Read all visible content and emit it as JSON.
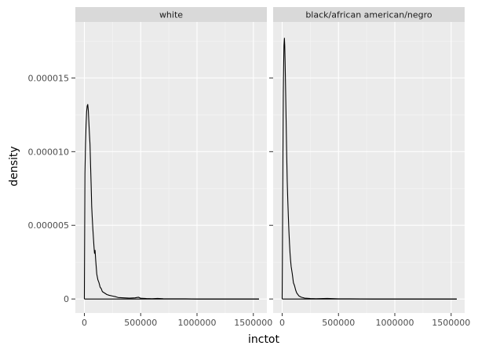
{
  "chart_data": {
    "type": "line",
    "xlabel": "inctot",
    "ylabel": "density",
    "x_ticks": [
      0,
      500000,
      1000000,
      1500000
    ],
    "x_tick_labels": [
      "0",
      "500000",
      "1000000",
      "1500000"
    ],
    "y_ticks": [
      0,
      5e-06,
      1e-05,
      1.5e-05
    ],
    "y_tick_labels": [
      "0",
      "0.000005",
      "0.000010",
      "0.000015"
    ],
    "xlim": [
      -80000,
      1620000
    ],
    "ylim": [
      -9.5e-07,
      1.88e-05
    ],
    "grid": true,
    "facets": [
      {
        "label": "white",
        "x": [
          0,
          2000,
          5000,
          10000,
          15000,
          20000,
          25000,
          30000,
          35000,
          40000,
          45000,
          50000,
          55000,
          60000,
          65000,
          70000,
          75000,
          80000,
          85000,
          90000,
          95000,
          100000,
          110000,
          120000,
          130000,
          140000,
          150000,
          160000,
          180000,
          200000,
          220000,
          250000,
          280000,
          300000,
          350000,
          400000,
          450000,
          480000,
          500000,
          550000,
          600000,
          650000,
          700000,
          800000,
          900000,
          1000000,
          1100000,
          1200000,
          1300000,
          1400000,
          1500000,
          1550000
        ],
        "y": [
          0,
          3.5e-06,
          8.5e-06,
          1.05e-05,
          1.18e-05,
          1.27e-05,
          1.31e-05,
          1.32e-05,
          1.28e-05,
          1.2e-05,
          1.12e-05,
          1.05e-05,
          9.1e-06,
          7.8e-06,
          6.3e-06,
          5.5e-06,
          4.8e-06,
          4.2e-06,
          3.6e-06,
          3.1e-06,
          3.3e-06,
          2.7e-06,
          1.7e-06,
          1.3e-06,
          1.1e-06,
          8e-07,
          7e-07,
          5e-07,
          4e-07,
          3e-07,
          2.5e-07,
          2e-07,
          1.5e-07,
          1e-07,
          8e-08,
          6e-08,
          8e-08,
          1.2e-07,
          5e-08,
          3e-08,
          2e-08,
          4e-08,
          2e-08,
          1e-08,
          1e-08,
          0,
          0,
          0,
          0,
          0,
          0,
          0
        ]
      },
      {
        "label": "black/african american/negro",
        "x": [
          0,
          2000,
          5000,
          8000,
          10000,
          13000,
          16000,
          20000,
          23000,
          26000,
          30000,
          35000,
          40000,
          45000,
          50000,
          55000,
          60000,
          65000,
          70000,
          75000,
          80000,
          90000,
          100000,
          110000,
          120000,
          130000,
          150000,
          170000,
          200000,
          250000,
          300000,
          400000,
          500000,
          600000,
          800000,
          1000000,
          1200000,
          1400000,
          1550000
        ],
        "y": [
          0,
          2.5e-06,
          7e-06,
          1.15e-05,
          1.4e-05,
          1.58e-05,
          1.72e-05,
          1.77e-05,
          1.72e-05,
          1.62e-05,
          1.45e-05,
          1.22e-05,
          9.9e-06,
          8e-06,
          6.7e-06,
          5.6e-06,
          4.6e-06,
          3.8e-06,
          3.1e-06,
          2.6e-06,
          2.2e-06,
          1.7e-06,
          1.1e-06,
          9e-07,
          6e-07,
          4e-07,
          2e-07,
          1.2e-07,
          6e-08,
          3e-08,
          2e-08,
          4e-08,
          1e-08,
          1e-08,
          0,
          0,
          0,
          0,
          0
        ]
      }
    ]
  }
}
